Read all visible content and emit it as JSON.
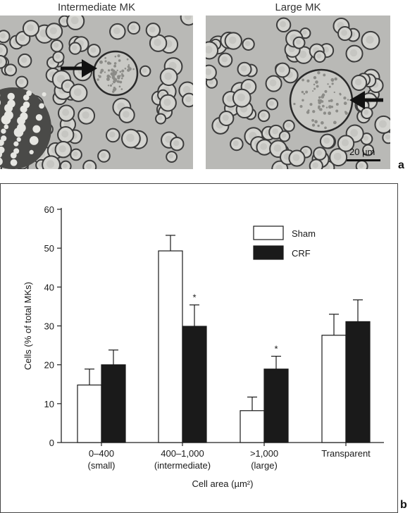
{
  "panel_a": {
    "left_title": "Intermediate MK",
    "right_title": "Large MK",
    "scale_bar": "20 µm",
    "letter": "a"
  },
  "panel_b": {
    "letter": "b"
  },
  "chart_data": {
    "type": "bar",
    "categories": [
      "0–400\n(small)",
      "400–1,000\n(intermediate)",
      ">1,000\n(large)",
      "Transparent"
    ],
    "series": [
      {
        "name": "Sham",
        "color": "#ffffff",
        "values": [
          14.8,
          49.3,
          8.2,
          27.6
        ],
        "errors": [
          4.1,
          4.0,
          3.5,
          5.4
        ]
      },
      {
        "name": "CRF",
        "color": "#1a1a1a",
        "values": [
          20.0,
          29.9,
          18.9,
          31.1
        ],
        "errors": [
          3.8,
          5.5,
          3.3,
          5.6
        ]
      }
    ],
    "significance": [
      "",
      "*",
      "*",
      ""
    ],
    "xlabel": "Cell area (µm²)",
    "ylabel": "Cells (% of total MKs)",
    "ylim": [
      0,
      60
    ],
    "yticks": [
      0,
      10,
      20,
      30,
      40,
      50,
      60
    ],
    "legend_position": "top-right",
    "grid": false
  }
}
